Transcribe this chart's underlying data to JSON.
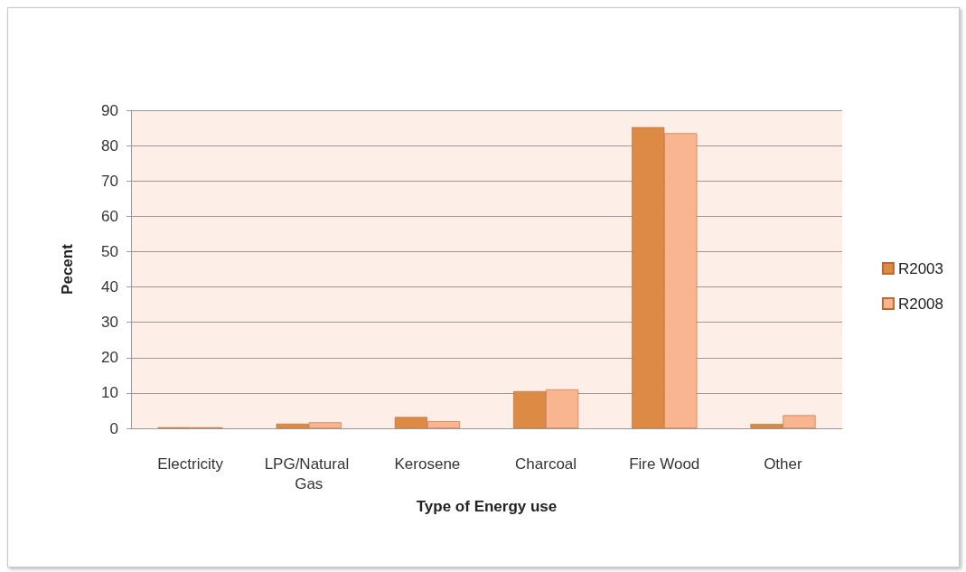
{
  "chart_data": {
    "type": "bar",
    "xlabel": "Type of Energy use",
    "ylabel": "Pecent",
    "categories": [
      "Electricity",
      "LPG/Natural Gas",
      "Kerosene",
      "Charcoal",
      "Fire Wood",
      "Other"
    ],
    "series": [
      {
        "name": "R2003",
        "color": "#dd8a45",
        "values": [
          0.3,
          1.3,
          3.2,
          10.5,
          85.2,
          1.2
        ]
      },
      {
        "name": "R2008",
        "color": "#f9b58f",
        "values": [
          0.3,
          1.7,
          2,
          11,
          83.5,
          3.7
        ]
      }
    ],
    "ylim": [
      0,
      90
    ],
    "yticks": [
      0,
      10,
      20,
      30,
      40,
      50,
      60,
      70,
      80,
      90
    ],
    "grid": "y",
    "legend": "right"
  }
}
